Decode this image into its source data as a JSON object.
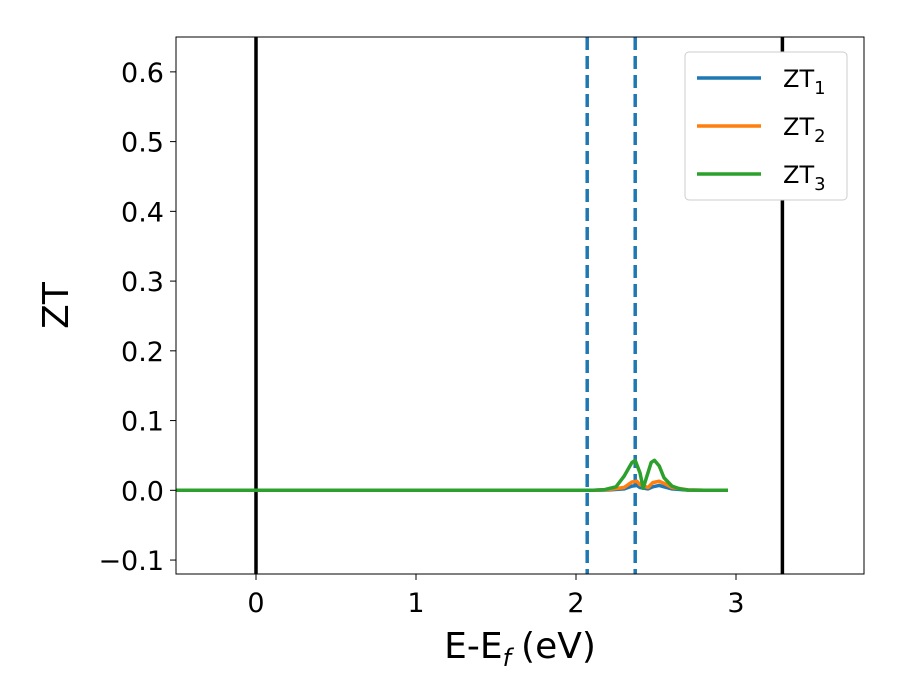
{
  "chart_data": {
    "type": "line",
    "xlabel": "E-E",
    "xlabel_subscript": "f",
    "xlabel_unit": "(eV)",
    "ylabel": "ZT",
    "xlim": [
      -0.5,
      3.8
    ],
    "ylim": [
      -0.12,
      0.65
    ],
    "xticks": [
      0,
      1,
      2,
      3
    ],
    "yticks": [
      -0.1,
      0.0,
      0.1,
      0.2,
      0.3,
      0.4,
      0.5,
      0.6
    ],
    "grid": false,
    "legend_position": "top-right",
    "series": [
      {
        "name": "ZT",
        "subscript": "1",
        "color": "#1f77b4",
        "x": [
          -0.5,
          2.1,
          2.2,
          2.3,
          2.35,
          2.38,
          2.4,
          2.45,
          2.48,
          2.52,
          2.55,
          2.6,
          2.7,
          2.8,
          2.95
        ],
        "y": [
          0.0,
          0.0,
          0.0005,
          0.002,
          0.006,
          0.007,
          0.004,
          0.002,
          0.005,
          0.007,
          0.005,
          0.002,
          0.0003,
          0.0,
          0.0
        ]
      },
      {
        "name": "ZT",
        "subscript": "2",
        "color": "#ff7f0e",
        "x": [
          -0.5,
          2.1,
          2.2,
          2.3,
          2.35,
          2.38,
          2.4,
          2.45,
          2.48,
          2.52,
          2.55,
          2.6,
          2.7,
          2.8,
          2.95
        ],
        "y": [
          0.0,
          0.0,
          0.001,
          0.004,
          0.012,
          0.013,
          0.008,
          0.004,
          0.011,
          0.013,
          0.01,
          0.004,
          0.0006,
          0.0,
          0.0
        ]
      },
      {
        "name": "ZT",
        "subscript": "3",
        "color": "#2ca02c",
        "x": [
          -0.5,
          2.1,
          2.18,
          2.25,
          2.3,
          2.35,
          2.37,
          2.4,
          2.42,
          2.44,
          2.47,
          2.49,
          2.52,
          2.55,
          2.6,
          2.65,
          2.7,
          2.8,
          2.95
        ],
        "y": [
          0.0,
          0.0,
          0.001,
          0.005,
          0.02,
          0.04,
          0.043,
          0.025,
          0.003,
          0.018,
          0.04,
          0.043,
          0.035,
          0.018,
          0.006,
          0.002,
          0.0005,
          0.0,
          0.0
        ]
      }
    ],
    "vlines": [
      {
        "x": 0.0,
        "style": "solid",
        "color": "#000000"
      },
      {
        "x": 2.07,
        "style": "dashed",
        "color": "#1f77b4"
      },
      {
        "x": 2.37,
        "style": "dashed",
        "color": "#1f77b4"
      },
      {
        "x": 3.29,
        "style": "solid",
        "color": "#000000"
      }
    ]
  }
}
